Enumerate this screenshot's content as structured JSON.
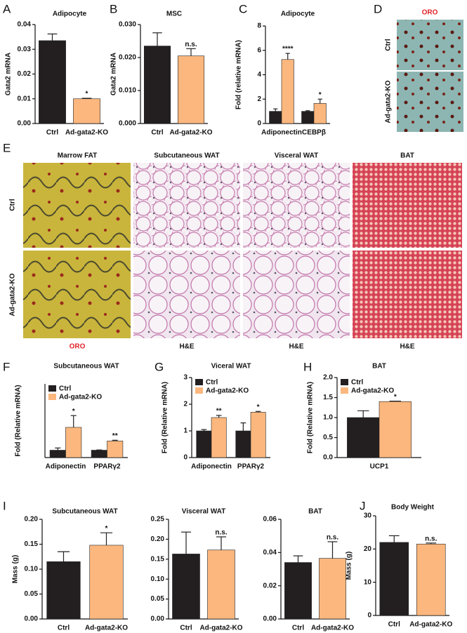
{
  "panel_letters": [
    "A",
    "B",
    "C",
    "D",
    "E",
    "F",
    "G",
    "H",
    "I",
    "J"
  ],
  "oro_panel": {
    "title": "ORO",
    "rows": [
      "Ctrl",
      "Ad-gata2-KO"
    ]
  },
  "histology": {
    "columns": [
      "Marrow FAT",
      "Subcutaneous WAT",
      "Visceral WAT",
      "BAT"
    ],
    "rows": [
      "Ctrl",
      "Ad-gata2-KO"
    ],
    "stains": [
      "ORO",
      "H&E",
      "H&E",
      "H&E"
    ]
  },
  "chart_data": [
    {
      "type": "bar",
      "title": "Adipocyte",
      "ylabel": "Gata2 mRNA",
      "categories": [
        "Ctrl",
        "Ad-gata2-KO"
      ],
      "values": [
        0.0335,
        0.01
      ],
      "errors": [
        0.0027,
        0.0002
      ],
      "colors": [
        "#231f20",
        "#fbb77e"
      ],
      "annotations": [
        null,
        "*"
      ],
      "ylim": [
        0,
        0.04
      ],
      "yticks": [
        {
          "value": 0,
          "label": "0.00"
        },
        0.01,
        0.02,
        0.03,
        0.04
      ]
    },
    {
      "type": "bar",
      "title": "MSC",
      "ylabel": "Gata2 mRNA",
      "categories": [
        "Ctrl",
        "Ad-gata2-KO"
      ],
      "values": [
        0.0235,
        0.0205
      ],
      "errors": [
        0.004,
        0.0022
      ],
      "colors": [
        "#231f20",
        "#fbb77e"
      ],
      "annotations": [
        null,
        "n.s."
      ],
      "ylim": [
        0,
        0.03
      ],
      "yticks": [
        {
          "value": 0,
          "label": "0.000"
        },
        {
          "value": 0.01,
          "label": "0.010"
        },
        {
          "value": 0.02,
          "label": "0.020"
        },
        {
          "value": 0.03,
          "label": "0.030"
        }
      ]
    },
    {
      "type": "bar",
      "title": "Adipocyte",
      "ylabel": "Fold (relative mRNA)",
      "categories": [
        "Adiponectin",
        "CEBPβ"
      ],
      "series": [
        {
          "color": "#231f20",
          "values": [
            1.0,
            1.0
          ],
          "errors": [
            0.2,
            0.05
          ],
          "annotations": [
            null,
            null
          ]
        },
        {
          "color": "#fbb77e",
          "values": [
            5.25,
            1.65
          ],
          "errors": [
            0.5,
            0.35
          ],
          "annotations": [
            "****",
            "*"
          ]
        }
      ],
      "ylim": [
        0,
        8
      ],
      "yticks": [
        0,
        2,
        4,
        6,
        8
      ]
    },
    {
      "type": "bar",
      "title": "Subcutaneous WAT",
      "ylabel": "Fold (Relative mRNA)",
      "categories": [
        "Adiponectin",
        "PPARγ2"
      ],
      "series": [
        {
          "name": "Ctrl",
          "color": "#231f20",
          "values": [
            1.0,
            1.0
          ],
          "errors": [
            0.3,
            0.03
          ],
          "annotations": [
            null,
            null
          ]
        },
        {
          "name": "Ad-gata2-KO",
          "color": "#fbb77e",
          "values": [
            4.1,
            2.25
          ],
          "errors": [
            1.6,
            0.1
          ],
          "annotations": [
            "*",
            "**"
          ]
        }
      ],
      "ylim": [
        0,
        10
      ],
      "legend": "upper left"
    },
    {
      "type": "bar",
      "title": "Viceral WAT",
      "ylabel": "Fold (Relative mRNA)",
      "categories": [
        "Adiponectin",
        "PPARγ2"
      ],
      "series": [
        {
          "name": "Ctrl",
          "color": "#231f20",
          "values": [
            1.0,
            1.0
          ],
          "errors": [
            0.05,
            0.3
          ],
          "annotations": [
            null,
            null
          ]
        },
        {
          "name": "Ad-gata2-KO",
          "color": "#fbb77e",
          "values": [
            1.5,
            1.7
          ],
          "errors": [
            0.08,
            0.03
          ],
          "annotations": [
            "**",
            "*"
          ]
        }
      ],
      "ylim": [
        0,
        3
      ],
      "yticks": [
        0,
        1,
        2,
        3
      ],
      "legend": "upper left"
    },
    {
      "type": "bar",
      "title": "BAT",
      "ylabel": "Fold (Relative mRNA)",
      "categories": [
        "UCP1"
      ],
      "series": [
        {
          "name": "Ctrl",
          "color": "#231f20",
          "values": [
            1.0
          ],
          "errors": [
            0.17
          ],
          "annotations": [
            null
          ]
        },
        {
          "name": "Ad-gata2-KO",
          "color": "#fbb77e",
          "values": [
            1.4
          ],
          "errors": [
            0.01
          ],
          "annotations": [
            "*"
          ]
        }
      ],
      "ylim": [
        0,
        2
      ],
      "yticks": [
        {
          "value": 0,
          "label": "0.0"
        },
        0.5,
        {
          "value": 1,
          "label": "1.0"
        },
        1.5,
        {
          "value": 2,
          "label": "2.0"
        }
      ],
      "legend": "upper left"
    },
    {
      "type": "bar",
      "title": "Subcutaneous WAT",
      "ylabel": "Mass (g)",
      "categories": [
        "Ctrl",
        "Ad-gata2-KO"
      ],
      "values": [
        0.115,
        0.148
      ],
      "errors": [
        0.02,
        0.025
      ],
      "colors": [
        "#231f20",
        "#fbb77e"
      ],
      "annotations": [
        null,
        "*"
      ],
      "ylim": [
        0,
        0.2
      ],
      "yticks": [
        {
          "value": 0,
          "label": "0.00"
        },
        0.05,
        {
          "value": 0.1,
          "label": "0.10"
        },
        0.15,
        {
          "value": 0.2,
          "label": "0.20"
        }
      ]
    },
    {
      "type": "bar",
      "title": "Visceral WAT",
      "categories": [
        "Ctrl",
        "Ad-gata2-KO"
      ],
      "values": [
        0.163,
        0.173
      ],
      "errors": [
        0.055,
        0.033
      ],
      "colors": [
        "#231f20",
        "#fbb77e"
      ],
      "annotations": [
        null,
        "n.s."
      ],
      "ylim": [
        0,
        0.25
      ],
      "yticks": [
        {
          "value": 0,
          "label": "0.00"
        },
        0.05,
        {
          "value": 0.1,
          "label": "0.10"
        },
        0.15,
        {
          "value": 0.2,
          "label": "0.20"
        },
        0.25
      ]
    },
    {
      "type": "bar",
      "title": "BAT",
      "categories": [
        "Ctrl",
        "Ad-gata2-KO"
      ],
      "values": [
        0.034,
        0.0365
      ],
      "errors": [
        0.004,
        0.01
      ],
      "colors": [
        "#231f20",
        "#fbb77e"
      ],
      "annotations": [
        null,
        "n.s."
      ],
      "ylim": [
        0,
        0.06
      ],
      "yticks": [
        {
          "value": 0,
          "label": "0.00"
        },
        0.02,
        0.04,
        0.06
      ]
    },
    {
      "type": "bar",
      "title": "Body Weight",
      "ylabel": "Mass (g)",
      "categories": [
        "Ctrl",
        "Ad-gata2-KO"
      ],
      "values": [
        22,
        21.5
      ],
      "errors": [
        2,
        0.3
      ],
      "colors": [
        "#231f20",
        "#fbb77e"
      ],
      "annotations": [
        null,
        "n.s."
      ],
      "ylim": [
        0,
        30
      ],
      "yticks": [
        0,
        10,
        20,
        30
      ]
    }
  ]
}
